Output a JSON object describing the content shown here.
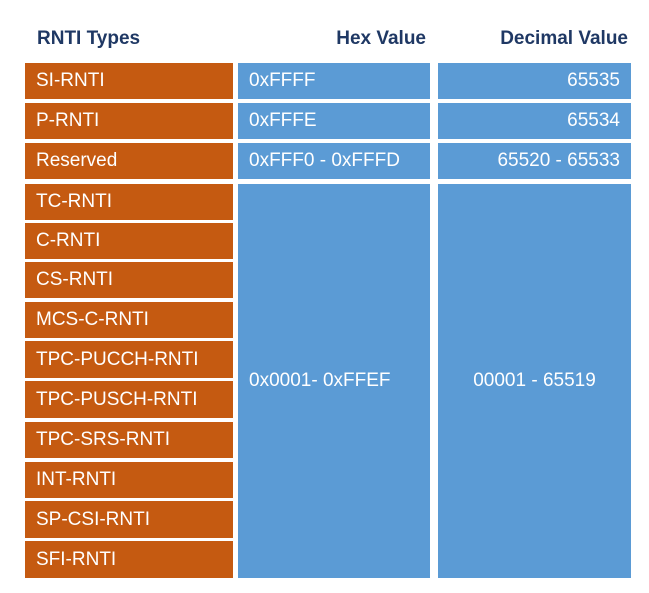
{
  "headers": {
    "types": "RNTI Types",
    "hex": "Hex Value",
    "decimal": "Decimal Value"
  },
  "rnti_types": [
    "SI-RNTI",
    "P-RNTI",
    "Reserved",
    "TC-RNTI",
    "C-RNTI",
    "CS-RNTI",
    "MCS-C-RNTI",
    "TPC-PUCCH-RNTI",
    "TPC-PUSCH-RNTI",
    "TPC-SRS-RNTI",
    "INT-RNTI",
    "SP-CSI-RNTI",
    "SFI-RNTI"
  ],
  "hex_values": [
    "0xFFFF",
    "0xFFFE",
    "0xFFF0 - 0xFFFD",
    "0x0001- 0xFFEF"
  ],
  "decimal_values": [
    "65535",
    "65534",
    "65520 - 65533",
    "00001 - 65519"
  ],
  "colors": {
    "header_text": "#1f3864",
    "type_cell": "#c55a11",
    "value_cell": "#5b9bd5"
  }
}
